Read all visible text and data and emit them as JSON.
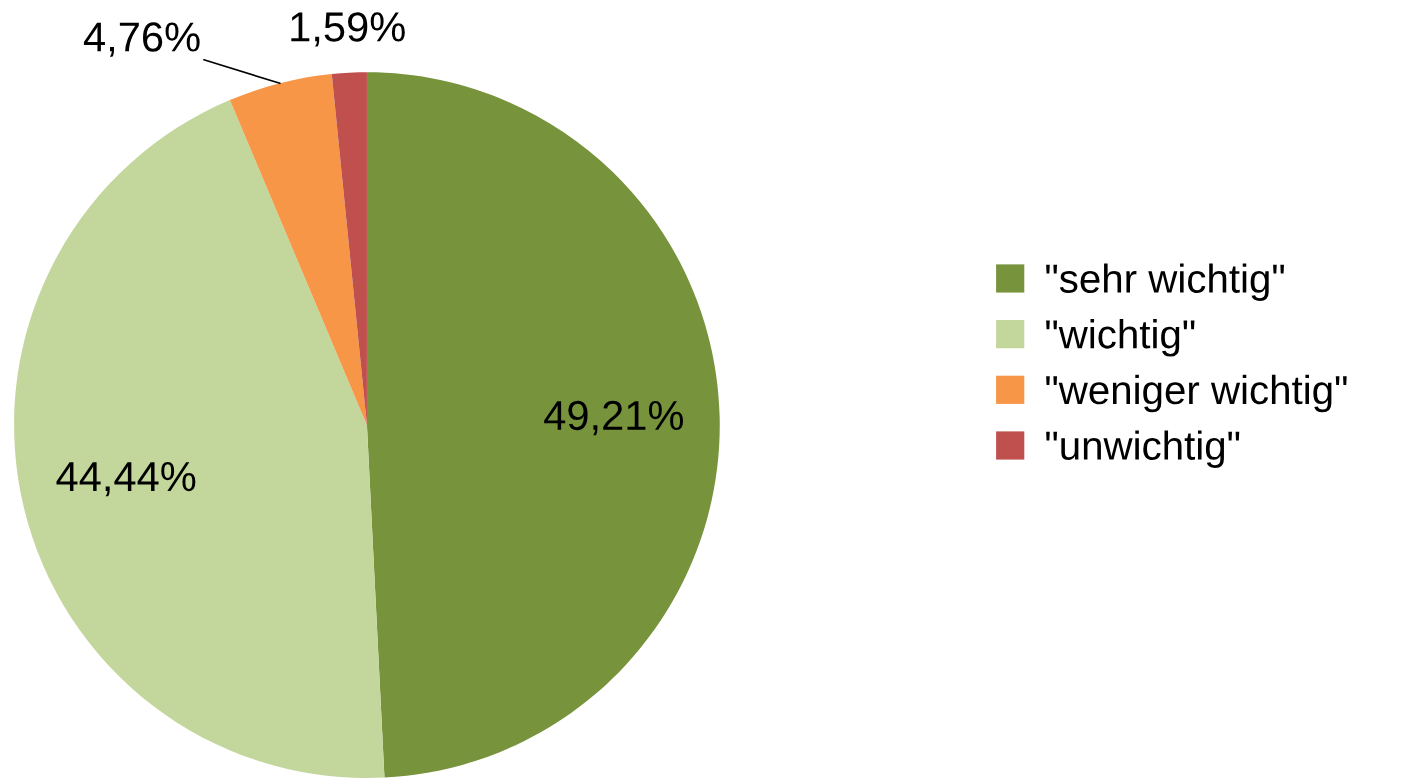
{
  "chart_data": {
    "type": "pie",
    "categories": [
      "\"sehr wichtig\"",
      "\"wichtig\"",
      "\"weniger wichtig\"",
      "\"unwichtig\""
    ],
    "values": [
      49.21,
      44.44,
      4.76,
      1.59
    ],
    "value_labels": [
      "49,21%",
      "44,44%",
      "4,76%",
      "1,59%"
    ],
    "colors": [
      "#77933c",
      "#c3d69b",
      "#f79646",
      "#c0504d"
    ],
    "legend": "right"
  }
}
